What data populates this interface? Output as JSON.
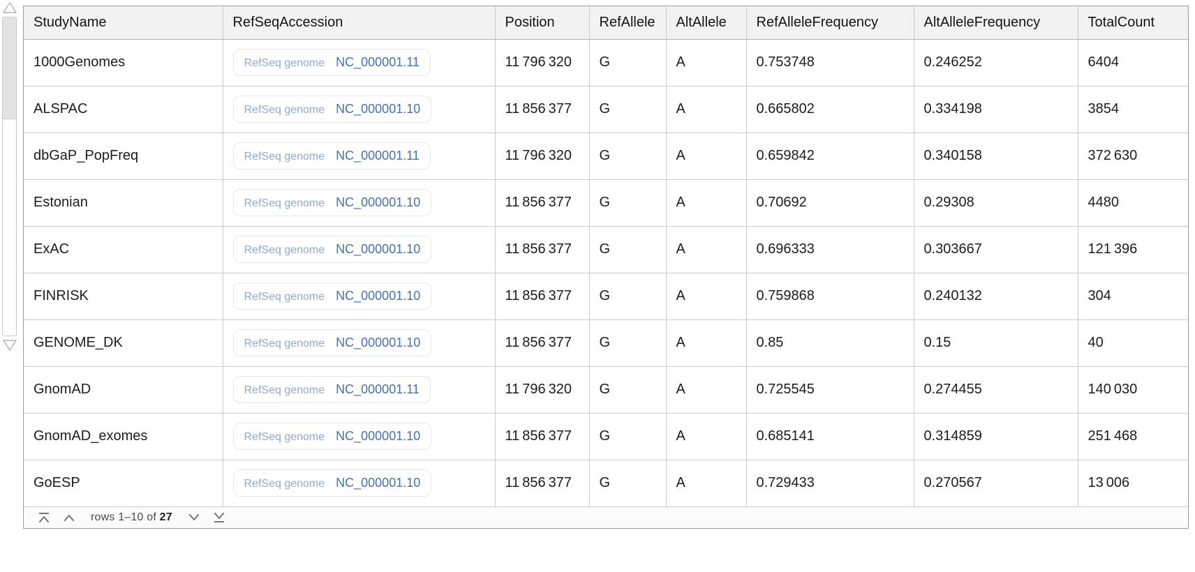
{
  "table": {
    "badge_label": "RefSeq genome",
    "headers": [
      {
        "key": "studyname",
        "label": "StudyName"
      },
      {
        "key": "refseqaccession",
        "label": "RefSeqAccession"
      },
      {
        "key": "position",
        "label": "Position"
      },
      {
        "key": "refallele",
        "label": "RefAllele"
      },
      {
        "key": "altallele",
        "label": "AltAllele"
      },
      {
        "key": "refallelefrequency",
        "label": "RefAlleleFrequency"
      },
      {
        "key": "altallelefrequency",
        "label": "AltAlleleFrequency"
      },
      {
        "key": "totalcount",
        "label": "TotalCount"
      }
    ],
    "rows": [
      {
        "study": "1000Genomes",
        "accession": "NC_000001.11",
        "position": "11 796 320",
        "ref": "G",
        "alt": "A",
        "ref_freq": "0.753748",
        "alt_freq": "0.246252",
        "total": "6404"
      },
      {
        "study": "ALSPAC",
        "accession": "NC_000001.10",
        "position": "11 856 377",
        "ref": "G",
        "alt": "A",
        "ref_freq": "0.665802",
        "alt_freq": "0.334198",
        "total": "3854"
      },
      {
        "study": "dbGaP_PopFreq",
        "accession": "NC_000001.11",
        "position": "11 796 320",
        "ref": "G",
        "alt": "A",
        "ref_freq": "0.659842",
        "alt_freq": "0.340158",
        "total": "372 630"
      },
      {
        "study": "Estonian",
        "accession": "NC_000001.10",
        "position": "11 856 377",
        "ref": "G",
        "alt": "A",
        "ref_freq": "0.70692",
        "alt_freq": "0.29308",
        "total": "4480"
      },
      {
        "study": "ExAC",
        "accession": "NC_000001.10",
        "position": "11 856 377",
        "ref": "G",
        "alt": "A",
        "ref_freq": "0.696333",
        "alt_freq": "0.303667",
        "total": "121 396"
      },
      {
        "study": "FINRISK",
        "accession": "NC_000001.10",
        "position": "11 856 377",
        "ref": "G",
        "alt": "A",
        "ref_freq": "0.759868",
        "alt_freq": "0.240132",
        "total": "304"
      },
      {
        "study": "GENOME_DK",
        "accession": "NC_000001.10",
        "position": "11 856 377",
        "ref": "G",
        "alt": "A",
        "ref_freq": "0.85",
        "alt_freq": "0.15",
        "total": "40"
      },
      {
        "study": "GnomAD",
        "accession": "NC_000001.11",
        "position": "11 796 320",
        "ref": "G",
        "alt": "A",
        "ref_freq": "0.725545",
        "alt_freq": "0.274455",
        "total": "140 030"
      },
      {
        "study": "GnomAD_exomes",
        "accession": "NC_000001.10",
        "position": "11 856 377",
        "ref": "G",
        "alt": "A",
        "ref_freq": "0.685141",
        "alt_freq": "0.314859",
        "total": "251 468"
      },
      {
        "study": "GoESP",
        "accession": "NC_000001.10",
        "position": "11 856 377",
        "ref": "G",
        "alt": "A",
        "ref_freq": "0.729433",
        "alt_freq": "0.270567",
        "total": "13 006"
      }
    ]
  },
  "pagination": {
    "rows_prefix": "rows 1–10 of",
    "total_rows": "27",
    "icons": [
      "first-page-icon",
      "prev-page-icon",
      "next-page-icon",
      "last-page-icon"
    ]
  },
  "scrollbar": {
    "icons": [
      "scroll-up-triangle-icon",
      "scroll-down-triangle-icon"
    ]
  },
  "colors": {
    "header_bg": "#f2f2f2",
    "cell_border": "#cbcbcb",
    "panel_border": "#9b9b9b",
    "badge_label": "#8fa9d0",
    "accession_link": "#4470b2",
    "footer_icon": "#757575",
    "scrollbar_thumb": "#e3e3e3"
  }
}
